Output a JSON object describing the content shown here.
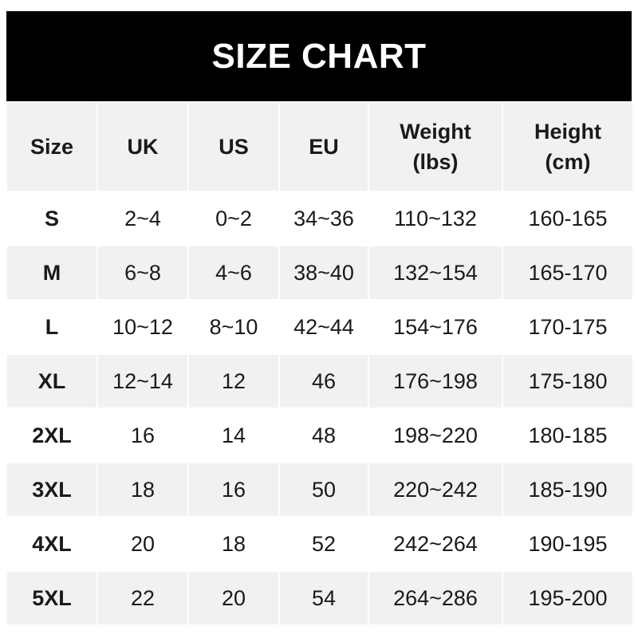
{
  "title": "SIZE CHART",
  "headers": [
    {
      "line1": "Size",
      "line2": ""
    },
    {
      "line1": "UK",
      "line2": ""
    },
    {
      "line1": "US",
      "line2": ""
    },
    {
      "line1": "EU",
      "line2": ""
    },
    {
      "line1": "Weight",
      "line2": "(lbs)"
    },
    {
      "line1": "Height",
      "line2": "(cm)"
    }
  ],
  "rows": [
    [
      "S",
      "2~4",
      "0~2",
      "34~36",
      "110~132",
      "160-165"
    ],
    [
      "M",
      "6~8",
      "4~6",
      "38~40",
      "132~154",
      "165-170"
    ],
    [
      "L",
      "10~12",
      "8~10",
      "42~44",
      "154~176",
      "170-175"
    ],
    [
      "XL",
      "12~14",
      "12",
      "46",
      "176~198",
      "175-180"
    ],
    [
      "2XL",
      "16",
      "14",
      "48",
      "198~220",
      "180-185"
    ],
    [
      "3XL",
      "18",
      "16",
      "50",
      "220~242",
      "185-190"
    ],
    [
      "4XL",
      "20",
      "18",
      "52",
      "242~264",
      "190-195"
    ],
    [
      "5XL",
      "22",
      "20",
      "54",
      "264~286",
      "195-200"
    ]
  ],
  "colors": {
    "title_bg": "#000000",
    "stripe": "#f1f1f1",
    "text": "#1a1a1a"
  }
}
